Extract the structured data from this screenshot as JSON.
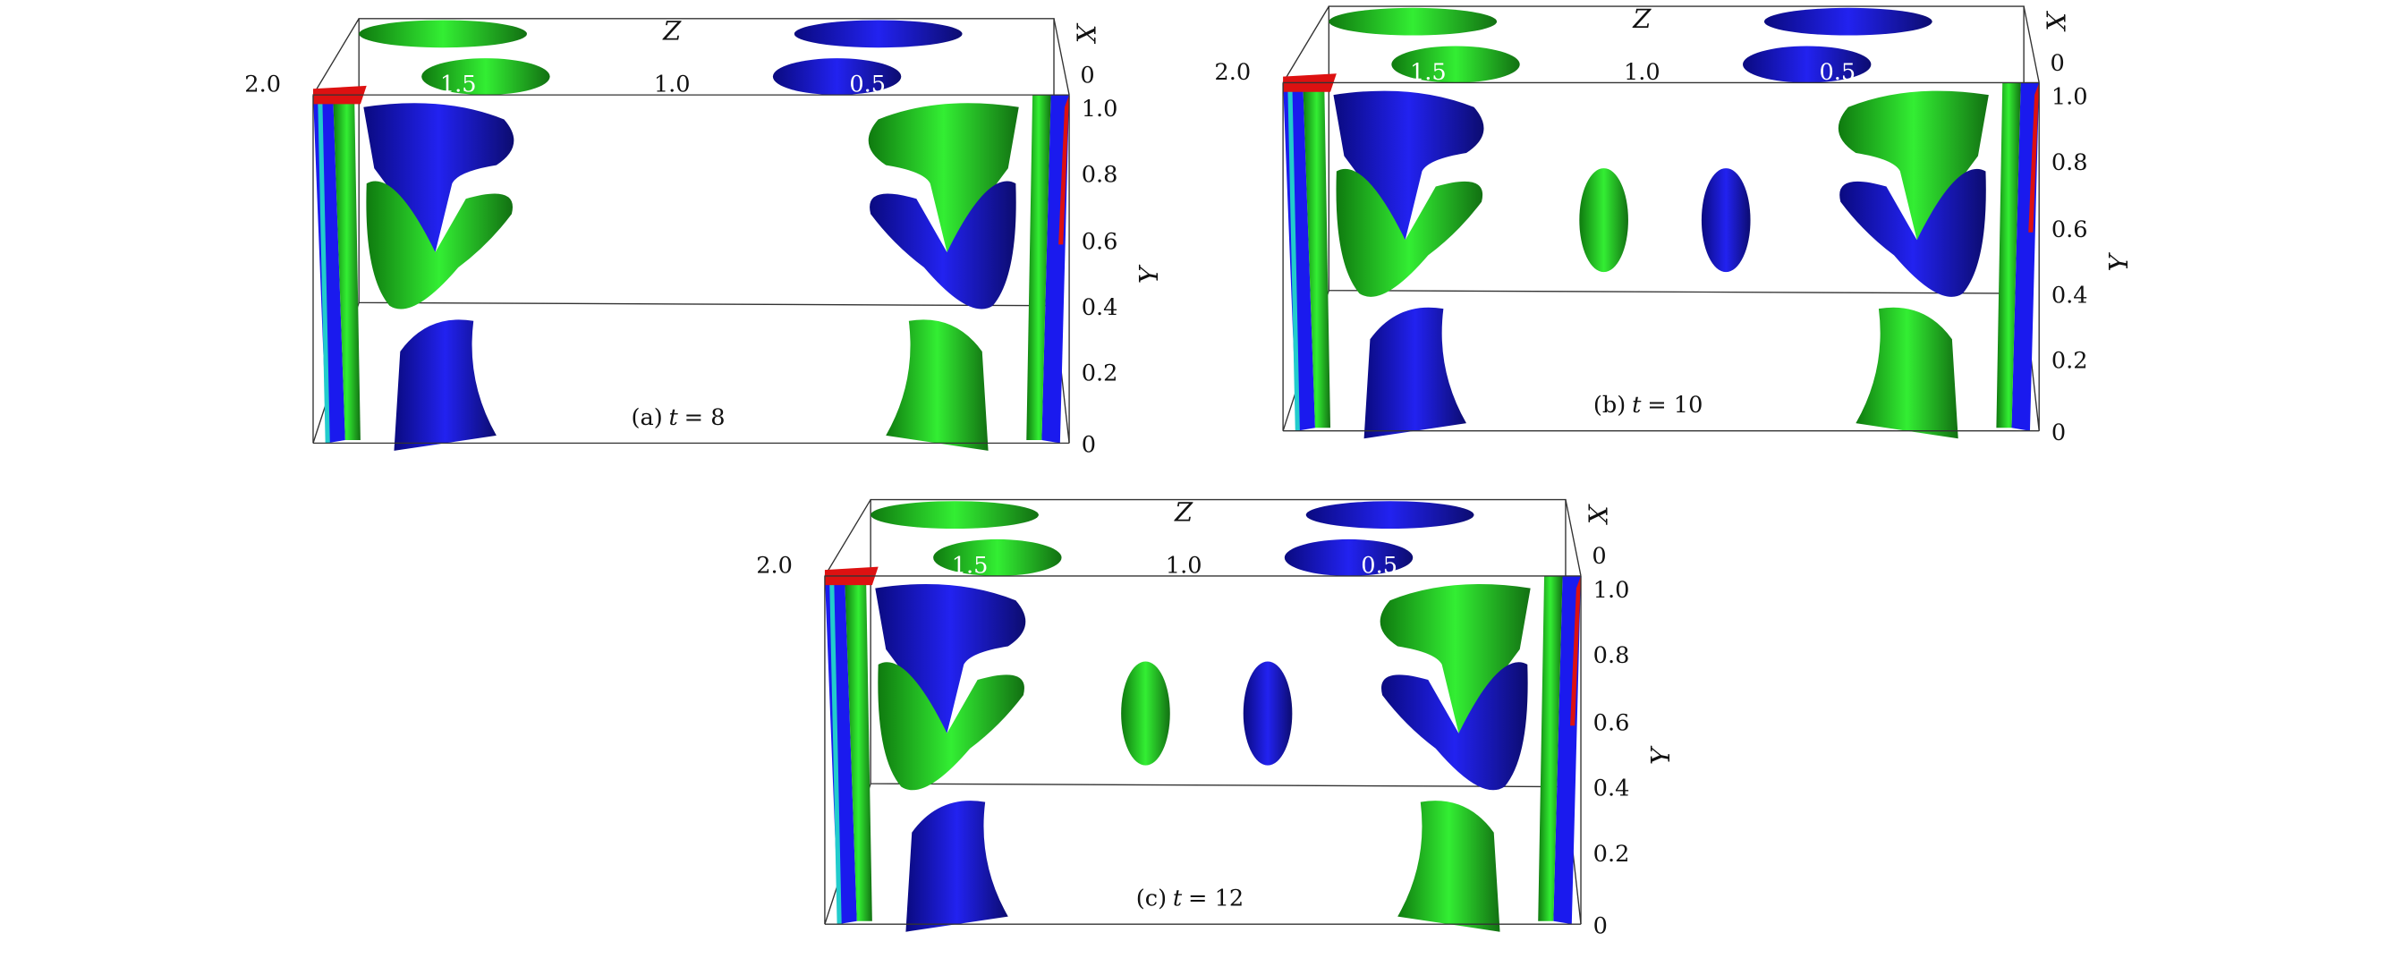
{
  "figure": {
    "panels": [
      {
        "caption": "(a) t = 8",
        "caption_prefix": "(a)",
        "caption_var": "t",
        "caption_value": "= 8"
      },
      {
        "caption": "(b) t = 10",
        "caption_prefix": "(b)",
        "caption_var": "t",
        "caption_value": "= 10"
      },
      {
        "caption": "(c) t = 12",
        "caption_prefix": "(c)",
        "caption_var": "t",
        "caption_value": "= 12"
      }
    ],
    "axes": {
      "z_label": "Z",
      "x_label": "X",
      "y_label": "Y",
      "z_ticks": [
        "2.0",
        "1.5",
        "1.0",
        "0.5"
      ],
      "x_ticks": [
        "0"
      ],
      "y_ticks": [
        "1.0",
        "0.8",
        "0.6",
        "0.4",
        "0.2",
        "0"
      ]
    },
    "colors": {
      "positive_iso": "#22dd22",
      "positive_dark": "#1a6e1a",
      "negative_iso": "#1a1aee",
      "negative_dark": "#10107a",
      "wall_red": "#dd1111",
      "wall_cyan": "#22cccc"
    }
  }
}
